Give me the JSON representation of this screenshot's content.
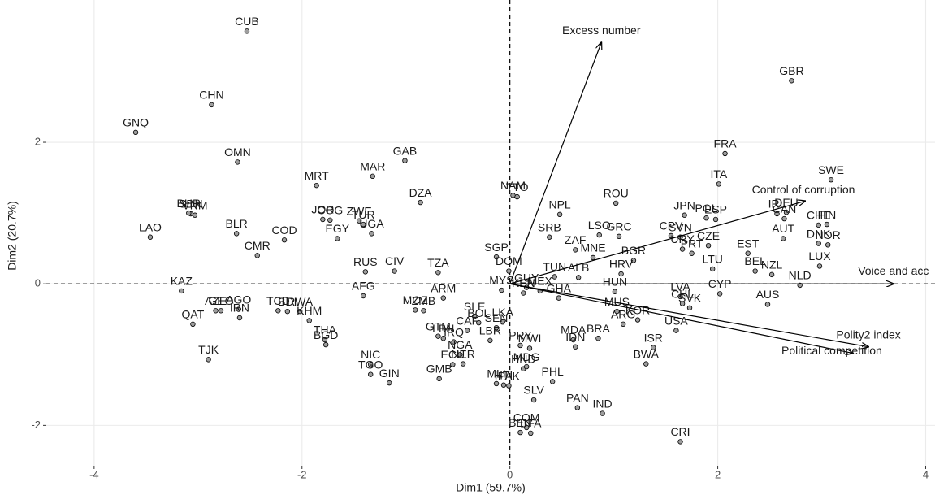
{
  "chart_data": {
    "type": "biplot",
    "xlabel": "Dim1 (59.7%)",
    "ylabel": "Dim2 (20.7%)",
    "xlim": [
      -4.46,
      4.09
    ],
    "ylim": [
      -2.57,
      4.01
    ],
    "xticks": [
      -4,
      -2,
      0,
      2,
      4
    ],
    "yticks": [
      -2,
      0,
      2
    ],
    "grid": true,
    "point_color": "#9e9e9e",
    "arrow_color": "#000000",
    "points": {
      "labels": [
        "CUB",
        "GBR",
        "CHN",
        "GNQ",
        "FRA",
        "OMN",
        "GAB",
        "MAR",
        "SWE",
        "ITA",
        "MRT",
        "DZA",
        "NAM",
        "TTO",
        "ROU",
        "SDN",
        "BHR",
        "VNM",
        "JOR",
        "COG",
        "ZWE",
        "TUR",
        "UGA",
        "EGY",
        "NPL",
        "JPN",
        "POL",
        "ESP",
        "DEU",
        "IRL",
        "CAN",
        "CHE",
        "FIN",
        "AUT",
        "DNK",
        "NOR",
        "LAO",
        "BLR",
        "COD",
        "CMR",
        "SRB",
        "LSO",
        "GRC",
        "ZAF",
        "MNE",
        "BGR",
        "CPV",
        "SVN",
        "URY",
        "CZE",
        "PRT",
        "EST",
        "LTU",
        "HRV",
        "BEL",
        "NZL",
        "LUX",
        "NLD",
        "ALB",
        "HUN",
        "CYP",
        "AUS",
        "LVA",
        "CHL",
        "SVK",
        "USA",
        "KOR",
        "ARG",
        "MUS",
        "ISR",
        "BWA",
        "BRA",
        "MDA",
        "IDN",
        "PHL",
        "PAN",
        "IND",
        "CRI",
        "SLV",
        "COM",
        "BEN",
        "BFA",
        "RUS",
        "CIV",
        "AFG",
        "TZA",
        "SGP",
        "DOM",
        "MYS",
        "GUY",
        "TUN",
        "KEN",
        "MEX",
        "GHA",
        "KAZ",
        "AZE",
        "GEO",
        "AGO",
        "IRN",
        "QAT",
        "TCD",
        "BDI",
        "RWA",
        "KHM",
        "THA",
        "BGD",
        "TJK",
        "NIC",
        "TGO",
        "GIN",
        "MOZ",
        "ZMB",
        "ARM",
        "SLE",
        "BOL",
        "LKA",
        "CAF",
        "SEN",
        "LBN",
        "IRQ",
        "GTM",
        "NGA",
        "NER",
        "LBR",
        "ECU",
        "GMB",
        "PRY",
        "MWI",
        "HND",
        "MDG",
        "MLI",
        "HTI",
        "PAK"
      ],
      "x": [
        -2.53,
        2.71,
        -2.87,
        -3.6,
        2.07,
        -2.62,
        -1.01,
        -1.32,
        3.09,
        2.01,
        -1.86,
        -0.86,
        0.03,
        0.07,
        1.02,
        -3.07,
        -3.09,
        -3.03,
        -1.8,
        -1.73,
        -1.45,
        -1.41,
        -1.33,
        -1.66,
        0.48,
        1.68,
        1.89,
        1.98,
        2.66,
        2.57,
        2.64,
        2.97,
        3.05,
        2.63,
        2.97,
        3.06,
        -3.46,
        -2.63,
        -2.17,
        -2.43,
        0.38,
        0.86,
        1.05,
        0.63,
        0.8,
        1.19,
        1.55,
        1.64,
        1.66,
        1.91,
        1.75,
        2.29,
        1.95,
        1.07,
        2.36,
        2.52,
        2.98,
        2.79,
        0.66,
        1.01,
        2.02,
        2.48,
        1.64,
        1.66,
        1.73,
        1.6,
        1.23,
        1.09,
        1.03,
        1.38,
        1.31,
        0.85,
        0.61,
        0.63,
        0.41,
        0.65,
        0.89,
        1.64,
        0.23,
        0.16,
        0.1,
        0.2,
        -1.39,
        -1.11,
        -1.41,
        -0.69,
        -0.13,
        -0.01,
        -0.08,
        0.16,
        0.43,
        0.13,
        0.29,
        0.47,
        -3.16,
        -2.83,
        -2.78,
        -2.61,
        -2.6,
        -3.05,
        -2.23,
        -2.14,
        -2.02,
        -1.93,
        -1.78,
        -1.77,
        -2.9,
        -1.34,
        -1.34,
        -1.16,
        -0.91,
        -0.83,
        -0.64,
        -0.34,
        -0.3,
        -0.07,
        -0.41,
        -0.13,
        -0.64,
        -0.54,
        -0.69,
        -0.48,
        -0.45,
        -0.19,
        -0.55,
        -0.68,
        0.1,
        0.19,
        0.13,
        0.16,
        -0.13,
        -0.06,
        -0.01
      ],
      "y": [
        3.57,
        2.87,
        2.53,
        2.14,
        1.84,
        1.72,
        1.74,
        1.52,
        1.47,
        1.41,
        1.39,
        1.15,
        1.25,
        1.23,
        1.14,
        0.99,
        1.0,
        0.97,
        0.91,
        0.9,
        0.89,
        0.84,
        0.71,
        0.64,
        0.98,
        0.97,
        0.93,
        0.91,
        1.01,
        0.99,
        0.92,
        0.83,
        0.84,
        0.64,
        0.57,
        0.55,
        0.66,
        0.71,
        0.62,
        0.4,
        0.66,
        0.69,
        0.67,
        0.48,
        0.37,
        0.33,
        0.68,
        0.66,
        0.49,
        0.54,
        0.43,
        0.43,
        0.21,
        0.14,
        0.18,
        0.13,
        0.25,
        -0.02,
        0.09,
        -0.11,
        -0.14,
        -0.29,
        -0.18,
        -0.28,
        -0.34,
        -0.66,
        -0.51,
        -0.57,
        -0.39,
        -0.9,
        -1.13,
        -0.77,
        -0.79,
        -0.89,
        -1.38,
        -1.75,
        -1.83,
        -2.23,
        -1.64,
        -2.03,
        -2.1,
        -2.11,
        0.17,
        0.18,
        -0.17,
        0.16,
        0.38,
        0.18,
        -0.09,
        -0.05,
        0.1,
        -0.13,
        -0.1,
        -0.2,
        -0.1,
        -0.38,
        -0.38,
        -0.36,
        -0.48,
        -0.57,
        -0.38,
        -0.39,
        -0.39,
        -0.52,
        -0.79,
        -0.86,
        -1.07,
        -1.14,
        -1.28,
        -1.4,
        -0.37,
        -0.38,
        -0.2,
        -0.46,
        -0.55,
        -0.54,
        -0.66,
        -0.62,
        -0.77,
        -0.82,
        -0.74,
        -1.0,
        -1.13,
        -0.8,
        -1.14,
        -1.34,
        -0.87,
        -0.91,
        -1.2,
        -1.17,
        -1.41,
        -1.43,
        -1.44
      ]
    },
    "arrows": {
      "labels": [
        "Excess number",
        "Control of corruption",
        "Voice and acc",
        "Polity2 index",
        "Political competition"
      ],
      "x": [
        0.88,
        2.84,
        3.69,
        3.45,
        3.3
      ],
      "y": [
        3.41,
        1.17,
        0.0,
        -0.89,
        -0.98
      ]
    }
  }
}
